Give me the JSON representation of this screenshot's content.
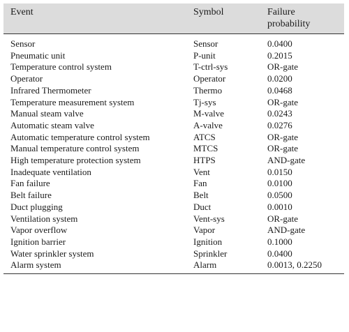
{
  "table": {
    "header": [
      "Event",
      "Symbol",
      "Failure probability"
    ],
    "rows": [
      [
        "Sensor",
        "Sensor",
        "0.0400"
      ],
      [
        "Pneumatic unit",
        "P-unit",
        "0.2015"
      ],
      [
        "Temperature control system",
        "T-ctrl-sys",
        "OR-gate"
      ],
      [
        "Operator",
        "Operator",
        "0.0200"
      ],
      [
        "Infrared Thermometer",
        "Thermo",
        "0.0468"
      ],
      [
        "Temperature measurement system",
        "Tj-sys",
        "OR-gate"
      ],
      [
        "Manual steam valve",
        "M-valve",
        "0.0243"
      ],
      [
        "Automatic steam valve",
        "A-valve",
        "0.0276"
      ],
      [
        "Automatic temperature control system",
        "ATCS",
        "OR-gate"
      ],
      [
        "Manual temperature control system",
        "MTCS",
        "OR-gate"
      ],
      [
        "High temperature protection system",
        "HTPS",
        "AND-gate"
      ],
      [
        "Inadequate ventilation",
        "Vent",
        "0.0150"
      ],
      [
        "Fan failure",
        "Fan",
        "0.0100"
      ],
      [
        "Belt failure",
        "Belt",
        "0.0500"
      ],
      [
        "Duct plugging",
        "Duct",
        "0.0010"
      ],
      [
        "Ventilation system",
        "Vent-sys",
        "OR-gate"
      ],
      [
        "Vapor overflow",
        "Vapor",
        "AND-gate"
      ],
      [
        "Ignition barrier",
        "Ignition",
        "0.1000"
      ],
      [
        "Water sprinkler system",
        "Sprinkler",
        "0.0400"
      ],
      [
        "Alarm system",
        "Alarm",
        "0.0013, 0.2250"
      ]
    ]
  }
}
